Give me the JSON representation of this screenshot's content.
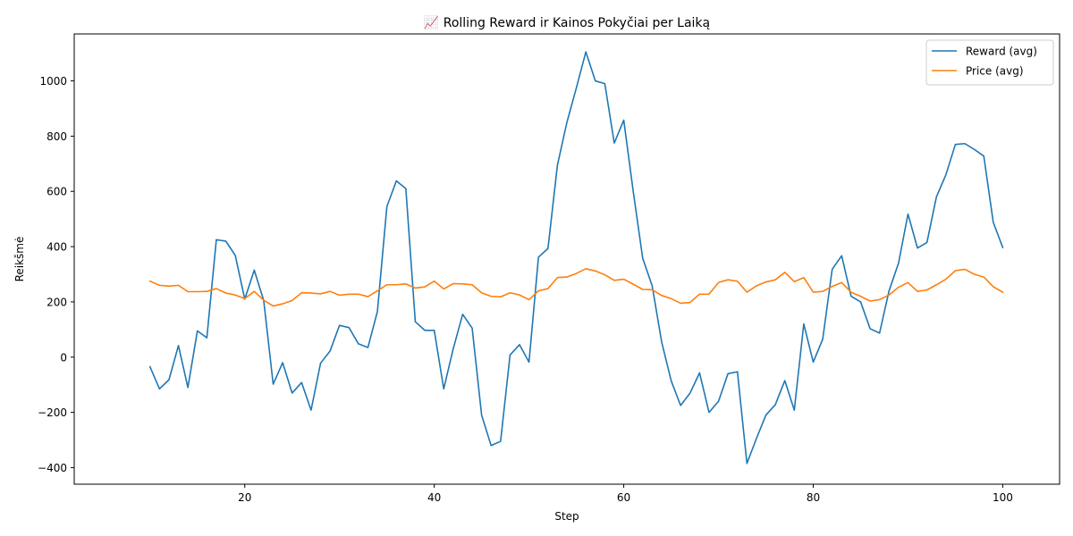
{
  "chart_data": {
    "type": "line",
    "title": "📈 Rolling Reward ir Kainos Pokyčiai per Laiką",
    "xlabel": "Step",
    "ylabel": "Reikšmė",
    "xlim": [
      2,
      106
    ],
    "ylim": [
      -460,
      1170
    ],
    "xticks": [
      20,
      40,
      60,
      80,
      100
    ],
    "yticks": [
      -400,
      -200,
      0,
      200,
      400,
      600,
      800,
      1000
    ],
    "grid": false,
    "legend_position": "top-right",
    "series": [
      {
        "name": "Reward (avg)",
        "color": "#1f77b4",
        "x": [
          10,
          11,
          12,
          13,
          14,
          15,
          16,
          17,
          18,
          19,
          20,
          21,
          22,
          23,
          24,
          25,
          26,
          27,
          28,
          29,
          30,
          31,
          32,
          33,
          34,
          35,
          36,
          37,
          38,
          39,
          40,
          41,
          42,
          43,
          44,
          45,
          46,
          47,
          48,
          49,
          50,
          51,
          52,
          53,
          54,
          55,
          56,
          57,
          58,
          59,
          60,
          61,
          62,
          63,
          64,
          65,
          66,
          67,
          68,
          69,
          70,
          71,
          72,
          73,
          74,
          75,
          76,
          77,
          78,
          79,
          80,
          81,
          82,
          83,
          84,
          85,
          86,
          87,
          88,
          89,
          90,
          91,
          92,
          93,
          94,
          95,
          96,
          97,
          98,
          99,
          100
        ],
        "values": [
          -35,
          -115,
          -82,
          42,
          -110,
          95,
          70,
          425,
          420,
          368,
          210,
          315,
          205,
          -98,
          -20,
          -130,
          -92,
          -192,
          -22,
          22,
          115,
          107,
          48,
          35,
          165,
          545,
          638,
          610,
          128,
          97,
          97,
          -115,
          30,
          155,
          105,
          -210,
          -320,
          -305,
          8,
          45,
          -18,
          362,
          393,
          695,
          850,
          975,
          1105,
          1000,
          990,
          775,
          858,
          600,
          358,
          258,
          55,
          -85,
          -175,
          -130,
          -57,
          -200,
          -160,
          -60,
          -53,
          -385,
          -295,
          -210,
          -172,
          -85,
          -192,
          120,
          -18,
          65,
          318,
          367,
          220,
          200,
          103,
          87,
          240,
          340,
          518,
          395,
          415,
          580,
          660,
          770,
          773,
          752,
          728,
          488,
          397
        ]
      },
      {
        "name": "Price (avg)",
        "color": "#ff7f0e",
        "x": [
          10,
          11,
          12,
          13,
          14,
          15,
          16,
          17,
          18,
          19,
          20,
          21,
          22,
          23,
          24,
          25,
          26,
          27,
          28,
          29,
          30,
          31,
          32,
          33,
          34,
          35,
          36,
          37,
          38,
          39,
          40,
          41,
          42,
          43,
          44,
          45,
          46,
          47,
          48,
          49,
          50,
          51,
          52,
          53,
          54,
          55,
          56,
          57,
          58,
          59,
          60,
          61,
          62,
          63,
          64,
          65,
          66,
          67,
          68,
          69,
          70,
          71,
          72,
          73,
          74,
          75,
          76,
          77,
          78,
          79,
          80,
          81,
          82,
          83,
          84,
          85,
          86,
          87,
          88,
          89,
          90,
          91,
          92,
          93,
          94,
          95,
          96,
          97,
          98,
          99,
          100
        ],
        "values": [
          275,
          260,
          257,
          260,
          237,
          237,
          238,
          248,
          232,
          225,
          212,
          238,
          206,
          185,
          193,
          205,
          233,
          232,
          229,
          238,
          224,
          228,
          228,
          219,
          240,
          262,
          262,
          265,
          250,
          254,
          275,
          247,
          266,
          265,
          262,
          233,
          220,
          218,
          233,
          225,
          208,
          240,
          248,
          288,
          290,
          303,
          320,
          312,
          298,
          278,
          282,
          264,
          245,
          244,
          223,
          212,
          195,
          198,
          228,
          228,
          270,
          280,
          275,
          235,
          258,
          272,
          280,
          307,
          273,
          288,
          235,
          238,
          256,
          270,
          235,
          220,
          203,
          208,
          225,
          253,
          270,
          238,
          243,
          262,
          282,
          313,
          318,
          300,
          290,
          255,
          235
        ]
      }
    ]
  }
}
